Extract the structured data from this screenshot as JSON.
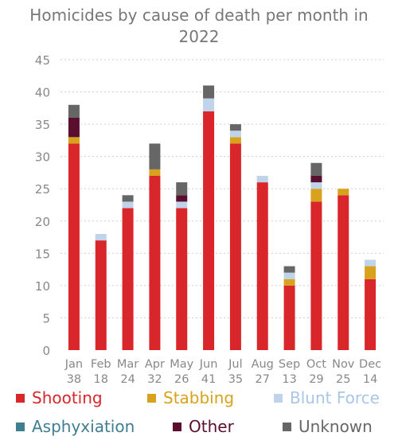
{
  "chart_data": {
    "type": "bar",
    "stacked": true,
    "title_lines": [
      "Homicides by cause of death per month in",
      "2022"
    ],
    "categories": [
      "Jan",
      "Feb",
      "Mar",
      "Apr",
      "May",
      "Jun",
      "Jul",
      "Aug",
      "Sep",
      "Oct",
      "Nov",
      "Dec"
    ],
    "totals": [
      "38",
      "18",
      "24",
      "32",
      "26",
      "41",
      "35",
      "27",
      "13",
      "29",
      "25",
      "14"
    ],
    "ylim": [
      0,
      45
    ],
    "yticks": [
      0,
      5,
      10,
      15,
      20,
      25,
      30,
      35,
      40,
      45
    ],
    "grid": true,
    "legend_position": "bottom",
    "series": [
      {
        "name": "Shooting",
        "color": "#d9262b",
        "values": [
          32,
          17,
          22,
          27,
          22,
          37,
          32,
          26,
          10,
          23,
          24,
          11
        ]
      },
      {
        "name": "Stabbing",
        "color": "#d9a21c",
        "values": [
          1,
          0,
          0,
          1,
          0,
          0,
          1,
          0,
          1,
          2,
          1,
          2
        ]
      },
      {
        "name": "Blunt Force",
        "color": "#bfd3ea",
        "values": [
          0,
          1,
          1,
          0,
          1,
          2,
          1,
          1,
          1,
          1,
          0,
          1
        ]
      },
      {
        "name": "Asphyxiation",
        "color": "#3f7d91",
        "values": [
          0,
          0,
          0,
          0,
          0,
          0,
          0,
          0,
          0,
          0,
          0,
          0
        ]
      },
      {
        "name": "Other",
        "color": "#5a0f2e",
        "values": [
          3,
          0,
          0,
          0,
          1,
          0,
          0,
          0,
          0,
          1,
          0,
          0
        ]
      },
      {
        "name": "Unknown",
        "color": "#666666",
        "values": [
          2,
          0,
          1,
          4,
          2,
          2,
          1,
          0,
          1,
          2,
          0,
          0
        ]
      }
    ]
  }
}
